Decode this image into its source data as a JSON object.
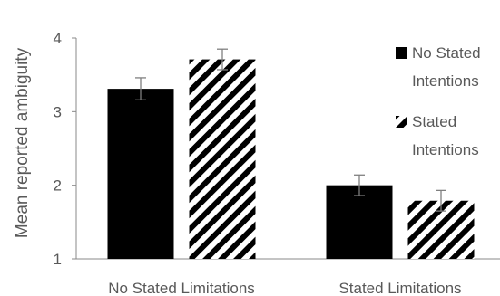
{
  "chart_data": {
    "type": "bar",
    "title": "",
    "xlabel": "",
    "ylabel": "Mean reported ambiguity",
    "categories": [
      "No Stated Limitations",
      "Stated Limitations"
    ],
    "ylim": [
      1,
      4
    ],
    "yticks": [
      "1",
      "2",
      "3",
      "4"
    ],
    "grid": false,
    "legend_position": "right",
    "series": [
      {
        "name": "No Stated Intentions",
        "legend_lines": [
          "No Stated",
          "Intentions"
        ],
        "fill": "solid",
        "color": "#000000",
        "values": [
          3.31,
          2.0
        ],
        "errors": [
          0.15,
          0.14
        ]
      },
      {
        "name": "Stated Intentions",
        "legend_lines": [
          "Stated",
          "Intentions"
        ],
        "fill": "diagonal-stripes",
        "color": "#000000",
        "values": [
          3.71,
          1.79
        ],
        "errors": [
          0.14,
          0.14
        ]
      }
    ]
  }
}
